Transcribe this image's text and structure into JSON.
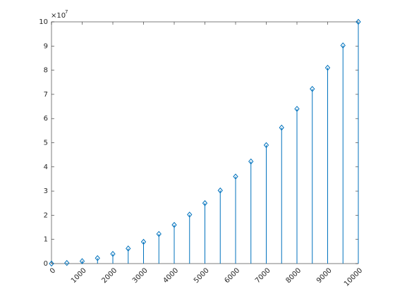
{
  "chart_data": {
    "type": "stem",
    "x": [
      0,
      500,
      1000,
      1500,
      2000,
      2500,
      3000,
      3500,
      4000,
      4500,
      5000,
      5500,
      6000,
      6500,
      7000,
      7500,
      8000,
      8500,
      9000,
      9500,
      10000
    ],
    "series": [
      {
        "color": "#0072bd",
        "values": [
          0,
          0.025,
          0.1,
          0.225,
          0.4,
          0.625,
          0.9,
          1.225,
          1.6,
          2.025,
          2.5,
          3.025,
          3.6,
          4.225,
          4.9,
          5.625,
          6.4,
          7.225,
          8.1,
          9.025,
          10
        ]
      }
    ],
    "xlim": [
      0,
      10000
    ],
    "xticks": [
      0,
      1000,
      2000,
      3000,
      4000,
      5000,
      6000,
      7000,
      8000,
      9000,
      10000
    ],
    "ylim": [
      0,
      10
    ],
    "yticks": [
      0,
      1,
      2,
      3,
      4,
      5,
      6,
      7,
      8,
      9,
      10
    ],
    "y_multiplier": "×10",
    "y_multiplier_exponent": "7"
  }
}
